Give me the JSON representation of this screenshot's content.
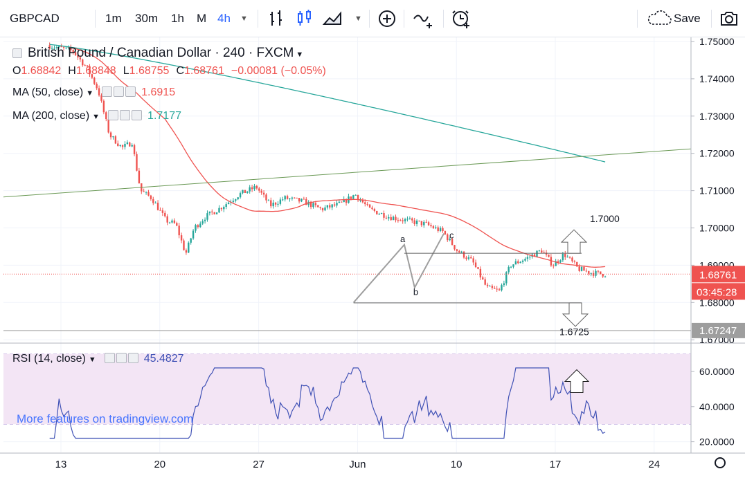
{
  "toolbar": {
    "symbol": "GBPCAD",
    "intervals": [
      "1m",
      "30m",
      "1h",
      "M",
      "4h"
    ],
    "active_interval": "4h",
    "save_label": "Save"
  },
  "legend": {
    "title": "British Pound / Canadian Dollar · 240 · FXCM",
    "o_label": "O",
    "o_value": "1.68842",
    "h_label": "H",
    "h_value": "1.68848",
    "l_label": "L",
    "l_value": "1.68755",
    "c_label": "C",
    "c_value": "1.68761",
    "change": "−0.00081 (−0.05%)",
    "ma50_label": "MA (50, close)",
    "ma50_value": "1.6915",
    "ma200_label": "MA (200, close)",
    "ma200_value": "1.7177",
    "rsi_label": "RSI (14, close)",
    "rsi_value": "45.4827"
  },
  "colors": {
    "up": "#26a69a",
    "down": "#ef5350",
    "ma50": "#ef5350",
    "ma200": "#26a69a",
    "rsi": "#3f51b5",
    "rsi_band": "#f3e5f5",
    "trend": "#6a9955",
    "accent": "#2962ff"
  },
  "price_label": {
    "value": "1.68761",
    "timer": "03:45:28",
    "level_value": "1.67247"
  },
  "annotations": {
    "target_up": "1.7000",
    "target_down": "1.6725",
    "a": "a",
    "b": "b",
    "c": "c"
  },
  "watermark": "More features on tradingview.com",
  "chart_data": {
    "type": "candlestick",
    "price_axis": {
      "ticks": [
        1.75,
        1.74,
        1.73,
        1.72,
        1.71,
        1.7,
        1.69,
        1.68,
        1.67
      ],
      "tick_labels": [
        "1.75000",
        "1.74000",
        "1.73000",
        "1.72000",
        "1.71000",
        "1.70000",
        "1.69000",
        "1.68000",
        "1.67000"
      ]
    },
    "rsi_axis": {
      "ticks": [
        60,
        40,
        20
      ],
      "tick_labels": [
        "60.0000",
        "40.0000",
        "20.0000"
      ],
      "band": [
        30,
        70
      ]
    },
    "time_axis": {
      "labels": [
        "13",
        "20",
        "27",
        "Jun",
        "10",
        "17",
        "24"
      ]
    },
    "series": [
      {
        "name": "MA (50, close)",
        "last": 1.6915
      },
      {
        "name": "MA (200, close)",
        "last": 1.7177
      },
      {
        "name": "RSI (14, close)",
        "last": 45.4827
      }
    ]
  }
}
